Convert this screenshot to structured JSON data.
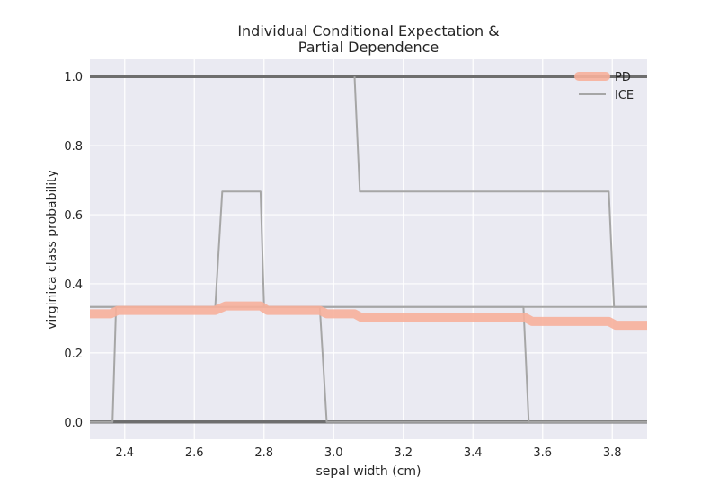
{
  "chart_data": {
    "type": "line",
    "title_lines": [
      "Individual Conditional Expectation &",
      "Partial Dependence"
    ],
    "xlabel": "sepal width (cm)",
    "ylabel": "virginica class probability",
    "xlim": [
      2.3,
      3.9
    ],
    "ylim": [
      -0.05,
      1.05
    ],
    "xticks": [
      2.4,
      2.6,
      2.8,
      3.0,
      3.2,
      3.4,
      3.6,
      3.8
    ],
    "xtick_labels": [
      "2.4",
      "2.6",
      "2.8",
      "3.0",
      "3.2",
      "3.4",
      "3.6",
      "3.8"
    ],
    "yticks": [
      0.0,
      0.2,
      0.4,
      0.6,
      0.8,
      1.0
    ],
    "ytick_labels": [
      "0.0",
      "0.2",
      "0.4",
      "0.6",
      "0.8",
      "1.0"
    ],
    "grid": true,
    "legend": {
      "placement": "top-right",
      "entries": [
        "PD",
        "ICE"
      ]
    },
    "colors": {
      "pd": "#f7b09b",
      "ice": "#a6a6a6",
      "ice_flat": "#6e6e6e",
      "background": "#eaeaf2",
      "grid": "#ffffff"
    },
    "pd": {
      "name": "PD",
      "points": [
        [
          2.3,
          0.313
        ],
        [
          2.36,
          0.313
        ],
        [
          2.38,
          0.323
        ],
        [
          2.66,
          0.323
        ],
        [
          2.69,
          0.336
        ],
        [
          2.79,
          0.336
        ],
        [
          2.81,
          0.323
        ],
        [
          2.96,
          0.323
        ],
        [
          2.98,
          0.313
        ],
        [
          3.06,
          0.313
        ],
        [
          3.08,
          0.302
        ],
        [
          3.55,
          0.302
        ],
        [
          3.57,
          0.291
        ],
        [
          3.79,
          0.291
        ],
        [
          3.81,
          0.28
        ],
        [
          3.9,
          0.28
        ]
      ]
    },
    "ice": [
      {
        "points": [
          [
            2.3,
            1.0
          ],
          [
            3.9,
            1.0
          ]
        ],
        "flat": true
      },
      {
        "points": [
          [
            2.3,
            0.0
          ],
          [
            3.9,
            0.0
          ]
        ],
        "flat": true
      },
      {
        "points": [
          [
            2.3,
            0.333
          ],
          [
            2.66,
            0.333
          ],
          [
            2.68,
            0.667
          ],
          [
            2.79,
            0.667
          ],
          [
            2.8,
            0.333
          ],
          [
            3.9,
            0.333
          ]
        ]
      },
      {
        "points": [
          [
            2.3,
            0.333
          ],
          [
            3.545,
            0.333
          ],
          [
            3.56,
            0.0
          ],
          [
            3.9,
            0.0
          ]
        ]
      },
      {
        "points": [
          [
            2.3,
            0.0
          ],
          [
            2.365,
            0.0
          ],
          [
            2.375,
            0.333
          ],
          [
            2.96,
            0.333
          ],
          [
            2.98,
            0.0
          ],
          [
            3.9,
            0.0
          ]
        ]
      },
      {
        "points": [
          [
            3.06,
            1.0
          ],
          [
            3.075,
            0.667
          ],
          [
            3.79,
            0.667
          ],
          [
            3.805,
            0.333
          ],
          [
            3.9,
            0.333
          ]
        ]
      }
    ]
  }
}
